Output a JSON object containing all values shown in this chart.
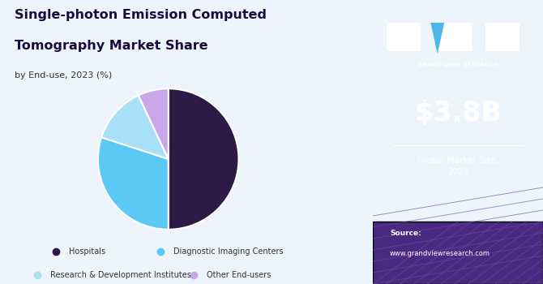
{
  "title_line1": "Single-photon Emission Computed",
  "title_line2": "Tomography Market Share",
  "subtitle": "by End-use, 2023 (%)",
  "slices": [
    50,
    30,
    13,
    7
  ],
  "labels": [
    "Hospitals",
    "Diagnostic Imaging Centers",
    "Research & Development Institutes",
    "Other End-users"
  ],
  "colors": [
    "#2e1a47",
    "#5bc8f5",
    "#a8e0f7",
    "#c8a8e8"
  ],
  "startangle": 90,
  "bg_color": "#eef4fb",
  "right_bg_color": "#3d1a6e",
  "market_size": "$3.8B",
  "market_label": "Global Market Size,\n2023",
  "source_label": "Source:",
  "source_url": "www.grandviewresearch.com",
  "legend_dot_colors": [
    "#2e1a47",
    "#5bc8f5",
    "#a8e0f7",
    "#c8a8e8"
  ],
  "title_color": "#1a0a3c",
  "subtitle_color": "#333333"
}
